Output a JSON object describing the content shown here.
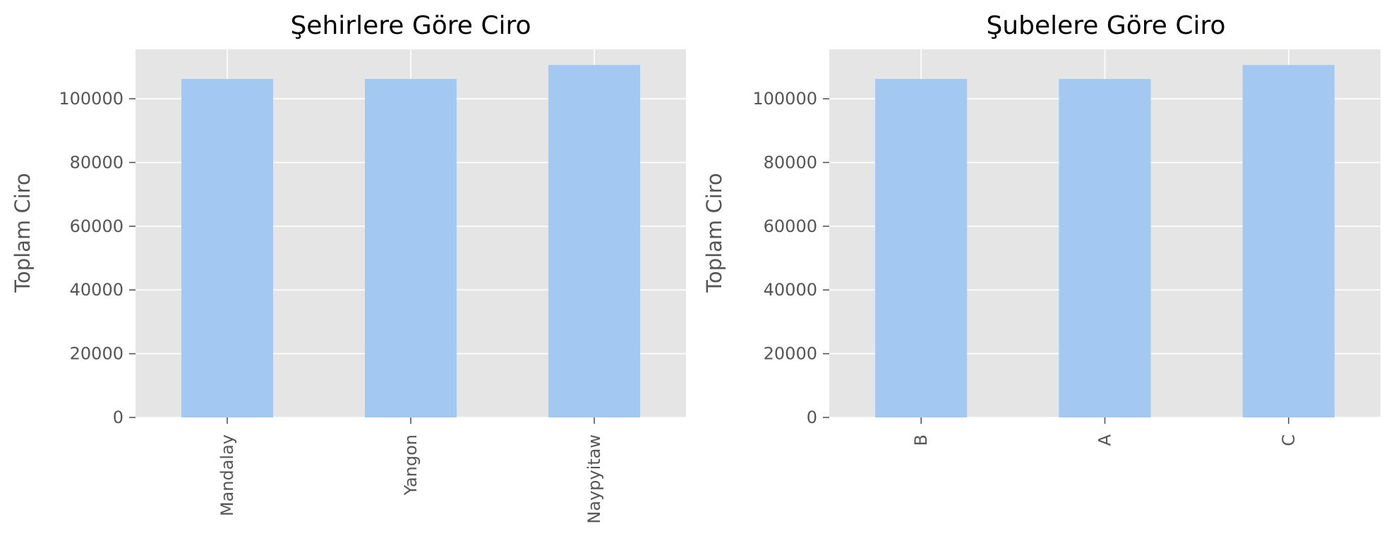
{
  "chart_data": [
    {
      "type": "bar",
      "title": "Şehirlere Göre Ciro",
      "xlabel": "",
      "ylabel": "Toplam Ciro",
      "categories": [
        "Mandalay",
        "Yangon",
        "Naypyitaw"
      ],
      "values": [
        106200,
        106200,
        110600
      ],
      "ylim": [
        0,
        115500
      ],
      "yticks": [
        0,
        20000,
        40000,
        60000,
        80000,
        100000
      ],
      "grid": true,
      "bar_color": "#A3C8F2",
      "background_color": "#E5E5E5"
    },
    {
      "type": "bar",
      "title": "Şubelere Göre Ciro",
      "xlabel": "",
      "ylabel": "Toplam Ciro",
      "categories": [
        "B",
        "A",
        "C"
      ],
      "values": [
        106200,
        106200,
        110600
      ],
      "ylim": [
        0,
        115500
      ],
      "yticks": [
        0,
        20000,
        40000,
        60000,
        80000,
        100000
      ],
      "grid": true,
      "bar_color": "#A3C8F2",
      "background_color": "#E5E5E5"
    }
  ]
}
